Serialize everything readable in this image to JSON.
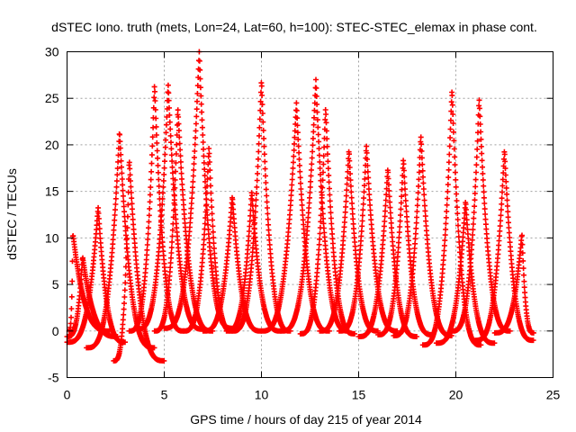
{
  "chart_data": {
    "type": "scatter",
    "title": "dSTEC Iono. truth (mets, Lon=24, Lat=60, h=100): STEC-STEC_elemax in phase cont.",
    "xlabel": "GPS time / hours of day 215 of year 2014",
    "ylabel": "dSTEC  / TECUs",
    "xlim": [
      0,
      25
    ],
    "ylim": [
      -5,
      30
    ],
    "xticks": [
      0,
      5,
      10,
      15,
      20,
      25
    ],
    "yticks": [
      -5,
      0,
      5,
      10,
      15,
      20,
      25,
      30
    ],
    "grid": true,
    "legend": "none",
    "marker": "+",
    "series_color": "#ff0000",
    "series": [
      {
        "peak": 0.3,
        "peak_y": 10.5,
        "start": 0.1,
        "end": 2.2,
        "min_y": 0.0
      },
      {
        "peak": 0.8,
        "peak_y": 8.0,
        "start": 0.0,
        "end": 2.6,
        "min_y": -0.6
      },
      {
        "peak": 1.6,
        "peak_y": 13.3,
        "start": 0.0,
        "end": 3.0,
        "min_y": -1.2
      },
      {
        "peak": 2.7,
        "peak_y": 21.5,
        "start": 1.0,
        "end": 4.5,
        "min_y": -1.8
      },
      {
        "peak": 3.2,
        "peak_y": 18.5,
        "start": 2.4,
        "end": 5.0,
        "min_y": -3.2
      },
      {
        "peak": 4.5,
        "peak_y": 26.5,
        "start": 3.2,
        "end": 6.0,
        "min_y": 0.0
      },
      {
        "peak": 5.2,
        "peak_y": 26.5,
        "start": 3.6,
        "end": 7.0,
        "min_y": 0.2
      },
      {
        "peak": 5.7,
        "peak_y": 24.0,
        "start": 4.5,
        "end": 7.5,
        "min_y": 0.0
      },
      {
        "peak": 6.8,
        "peak_y": 30.0,
        "start": 5.0,
        "end": 8.5,
        "min_y": 0.3
      },
      {
        "peak": 7.3,
        "peak_y": 19.8,
        "start": 6.0,
        "end": 8.5,
        "min_y": 0.0
      },
      {
        "peak": 8.5,
        "peak_y": 14.5,
        "start": 7.0,
        "end": 10.0,
        "min_y": 0.0
      },
      {
        "peak": 9.5,
        "peak_y": 15.0,
        "start": 8.2,
        "end": 11.0,
        "min_y": 0.0
      },
      {
        "peak": 10.0,
        "peak_y": 27.0,
        "start": 8.5,
        "end": 11.5,
        "min_y": 0.0
      },
      {
        "peak": 11.8,
        "peak_y": 24.5,
        "start": 10.0,
        "end": 13.5,
        "min_y": 0.0
      },
      {
        "peak": 12.8,
        "peak_y": 27.0,
        "start": 11.0,
        "end": 14.5,
        "min_y": 0.0
      },
      {
        "peak": 13.3,
        "peak_y": 24.0,
        "start": 12.0,
        "end": 14.8,
        "min_y": -0.3
      },
      {
        "peak": 14.5,
        "peak_y": 19.5,
        "start": 13.0,
        "end": 16.0,
        "min_y": 0.0
      },
      {
        "peak": 15.4,
        "peak_y": 20.0,
        "start": 14.0,
        "end": 17.0,
        "min_y": 0.0
      },
      {
        "peak": 16.5,
        "peak_y": 17.5,
        "start": 15.0,
        "end": 18.0,
        "min_y": -0.6
      },
      {
        "peak": 17.3,
        "peak_y": 18.5,
        "start": 16.0,
        "end": 18.8,
        "min_y": -0.4
      },
      {
        "peak": 18.2,
        "peak_y": 21.0,
        "start": 16.8,
        "end": 19.8,
        "min_y": -0.5
      },
      {
        "peak": 19.8,
        "peak_y": 26.0,
        "start": 18.3,
        "end": 21.3,
        "min_y": -1.5
      },
      {
        "peak": 20.5,
        "peak_y": 14.0,
        "start": 19.0,
        "end": 22.0,
        "min_y": -1.3
      },
      {
        "peak": 21.2,
        "peak_y": 25.0,
        "start": 19.8,
        "end": 22.8,
        "min_y": 0.0
      },
      {
        "peak": 22.5,
        "peak_y": 19.5,
        "start": 21.0,
        "end": 24.0,
        "min_y": -1.0
      },
      {
        "peak": 23.4,
        "peak_y": 10.5,
        "start": 22.0,
        "end": 24.0,
        "min_y": -0.2
      }
    ]
  }
}
